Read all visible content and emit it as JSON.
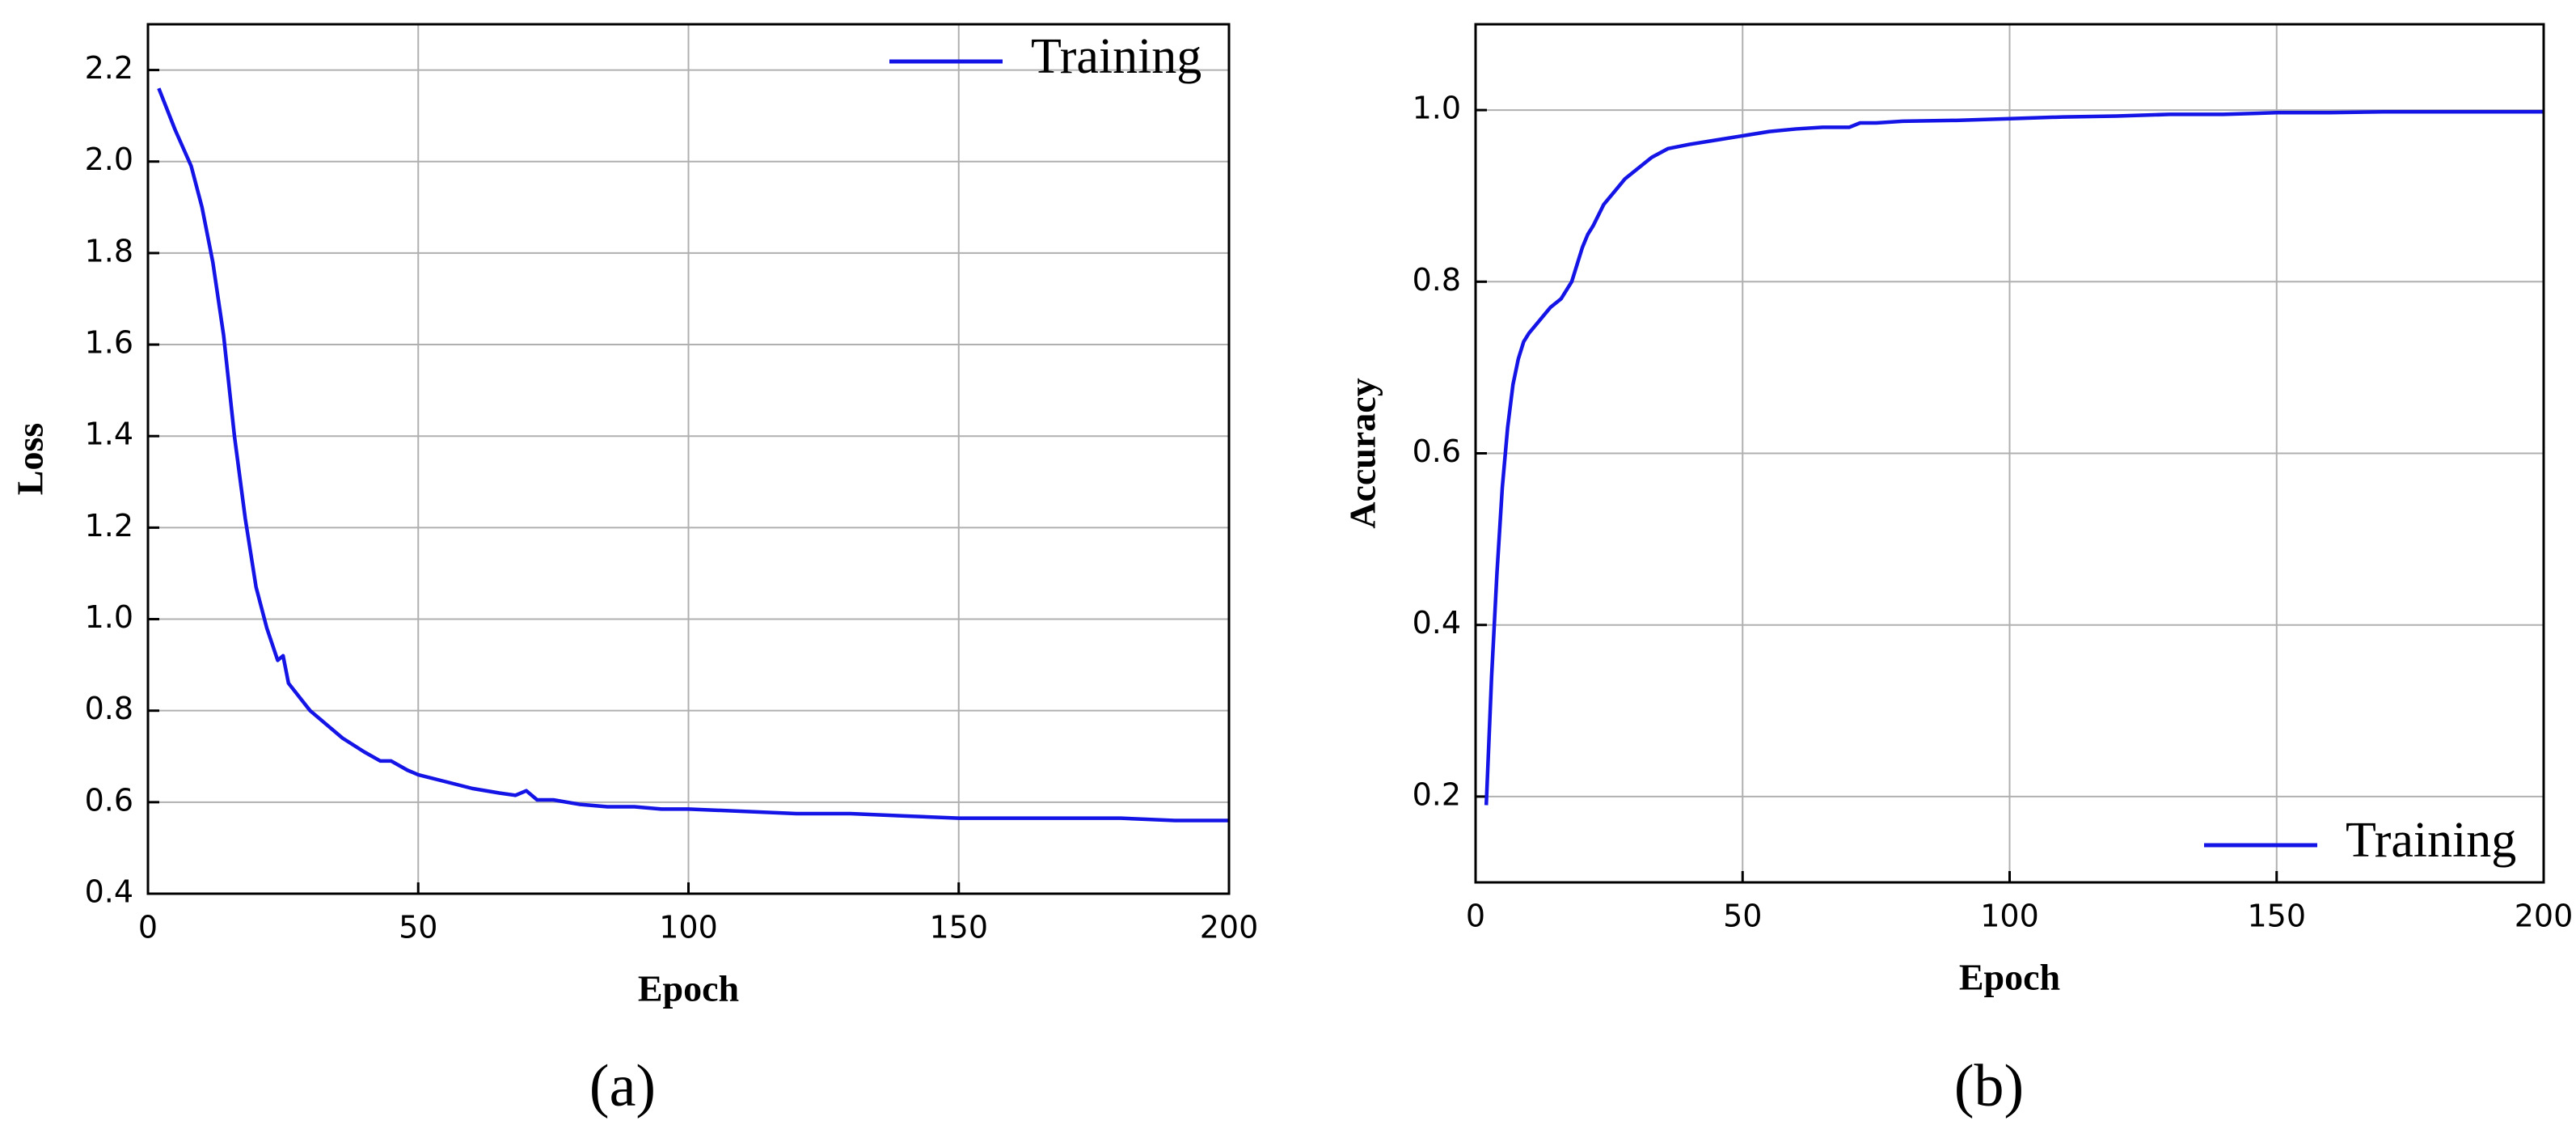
{
  "chart_data": [
    {
      "type": "line",
      "caption": "(a)",
      "x_label": "Epoch",
      "y_label": "Loss",
      "x": [
        2,
        5,
        8,
        10,
        12,
        14,
        16,
        18,
        20,
        22,
        24,
        25,
        26,
        28,
        30,
        33,
        36,
        40,
        43,
        45,
        48,
        50,
        55,
        60,
        65,
        68,
        70,
        72,
        75,
        80,
        85,
        90,
        95,
        100,
        110,
        120,
        130,
        140,
        150,
        160,
        170,
        180,
        190,
        200
      ],
      "series": [
        {
          "name": "Training",
          "color": "#1414e6",
          "values": [
            2.16,
            2.07,
            1.99,
            1.9,
            1.78,
            1.62,
            1.4,
            1.22,
            1.07,
            0.98,
            0.91,
            0.92,
            0.86,
            0.83,
            0.8,
            0.77,
            0.74,
            0.71,
            0.69,
            0.69,
            0.67,
            0.66,
            0.645,
            0.63,
            0.62,
            0.615,
            0.625,
            0.605,
            0.605,
            0.595,
            0.59,
            0.59,
            0.585,
            0.585,
            0.58,
            0.575,
            0.575,
            0.57,
            0.565,
            0.565,
            0.565,
            0.565,
            0.56,
            0.56
          ]
        }
      ],
      "xlim": [
        0,
        200
      ],
      "xticks": [
        0,
        50,
        100,
        150,
        200
      ],
      "ylim": [
        0.4,
        2.3
      ],
      "yticks": [
        0.4,
        0.6,
        0.8,
        {
          "value": 1,
          "label": "1.0"
        },
        1.2,
        1.4,
        1.6,
        1.8,
        {
          "value": 2,
          "label": "2.0"
        },
        2.2
      ],
      "grid": true,
      "legend": "upper right"
    },
    {
      "type": "line",
      "caption": "(b)",
      "x_label": "Epoch",
      "y_label": "Accuracy",
      "x": [
        2,
        3,
        4,
        5,
        6,
        7,
        8,
        9,
        10,
        12,
        14,
        16,
        18,
        20,
        21,
        22,
        24,
        26,
        28,
        30,
        33,
        36,
        40,
        45,
        50,
        55,
        60,
        65,
        70,
        72,
        75,
        80,
        90,
        100,
        110,
        120,
        130,
        140,
        150,
        160,
        170,
        180,
        190,
        200
      ],
      "series": [
        {
          "name": "Training",
          "color": "#1414e6",
          "values": [
            0.19,
            0.34,
            0.46,
            0.56,
            0.63,
            0.68,
            0.71,
            0.73,
            0.74,
            0.755,
            0.77,
            0.78,
            0.8,
            0.84,
            0.855,
            0.865,
            0.89,
            0.905,
            0.92,
            0.93,
            0.945,
            0.955,
            0.96,
            0.965,
            0.97,
            0.975,
            0.978,
            0.98,
            0.98,
            0.985,
            0.985,
            0.987,
            0.988,
            0.99,
            0.992,
            0.993,
            0.995,
            0.995,
            0.997,
            0.997,
            0.998,
            0.998,
            0.998,
            0.998
          ]
        }
      ],
      "xlim": [
        0,
        200
      ],
      "xticks": [
        0,
        50,
        100,
        150,
        200
      ],
      "ylim": [
        0.1,
        1.1
      ],
      "yticks": [
        0.2,
        0.4,
        0.6,
        0.8,
        {
          "value": 1,
          "label": "1.0"
        }
      ],
      "grid": true,
      "legend": "lower right"
    }
  ]
}
